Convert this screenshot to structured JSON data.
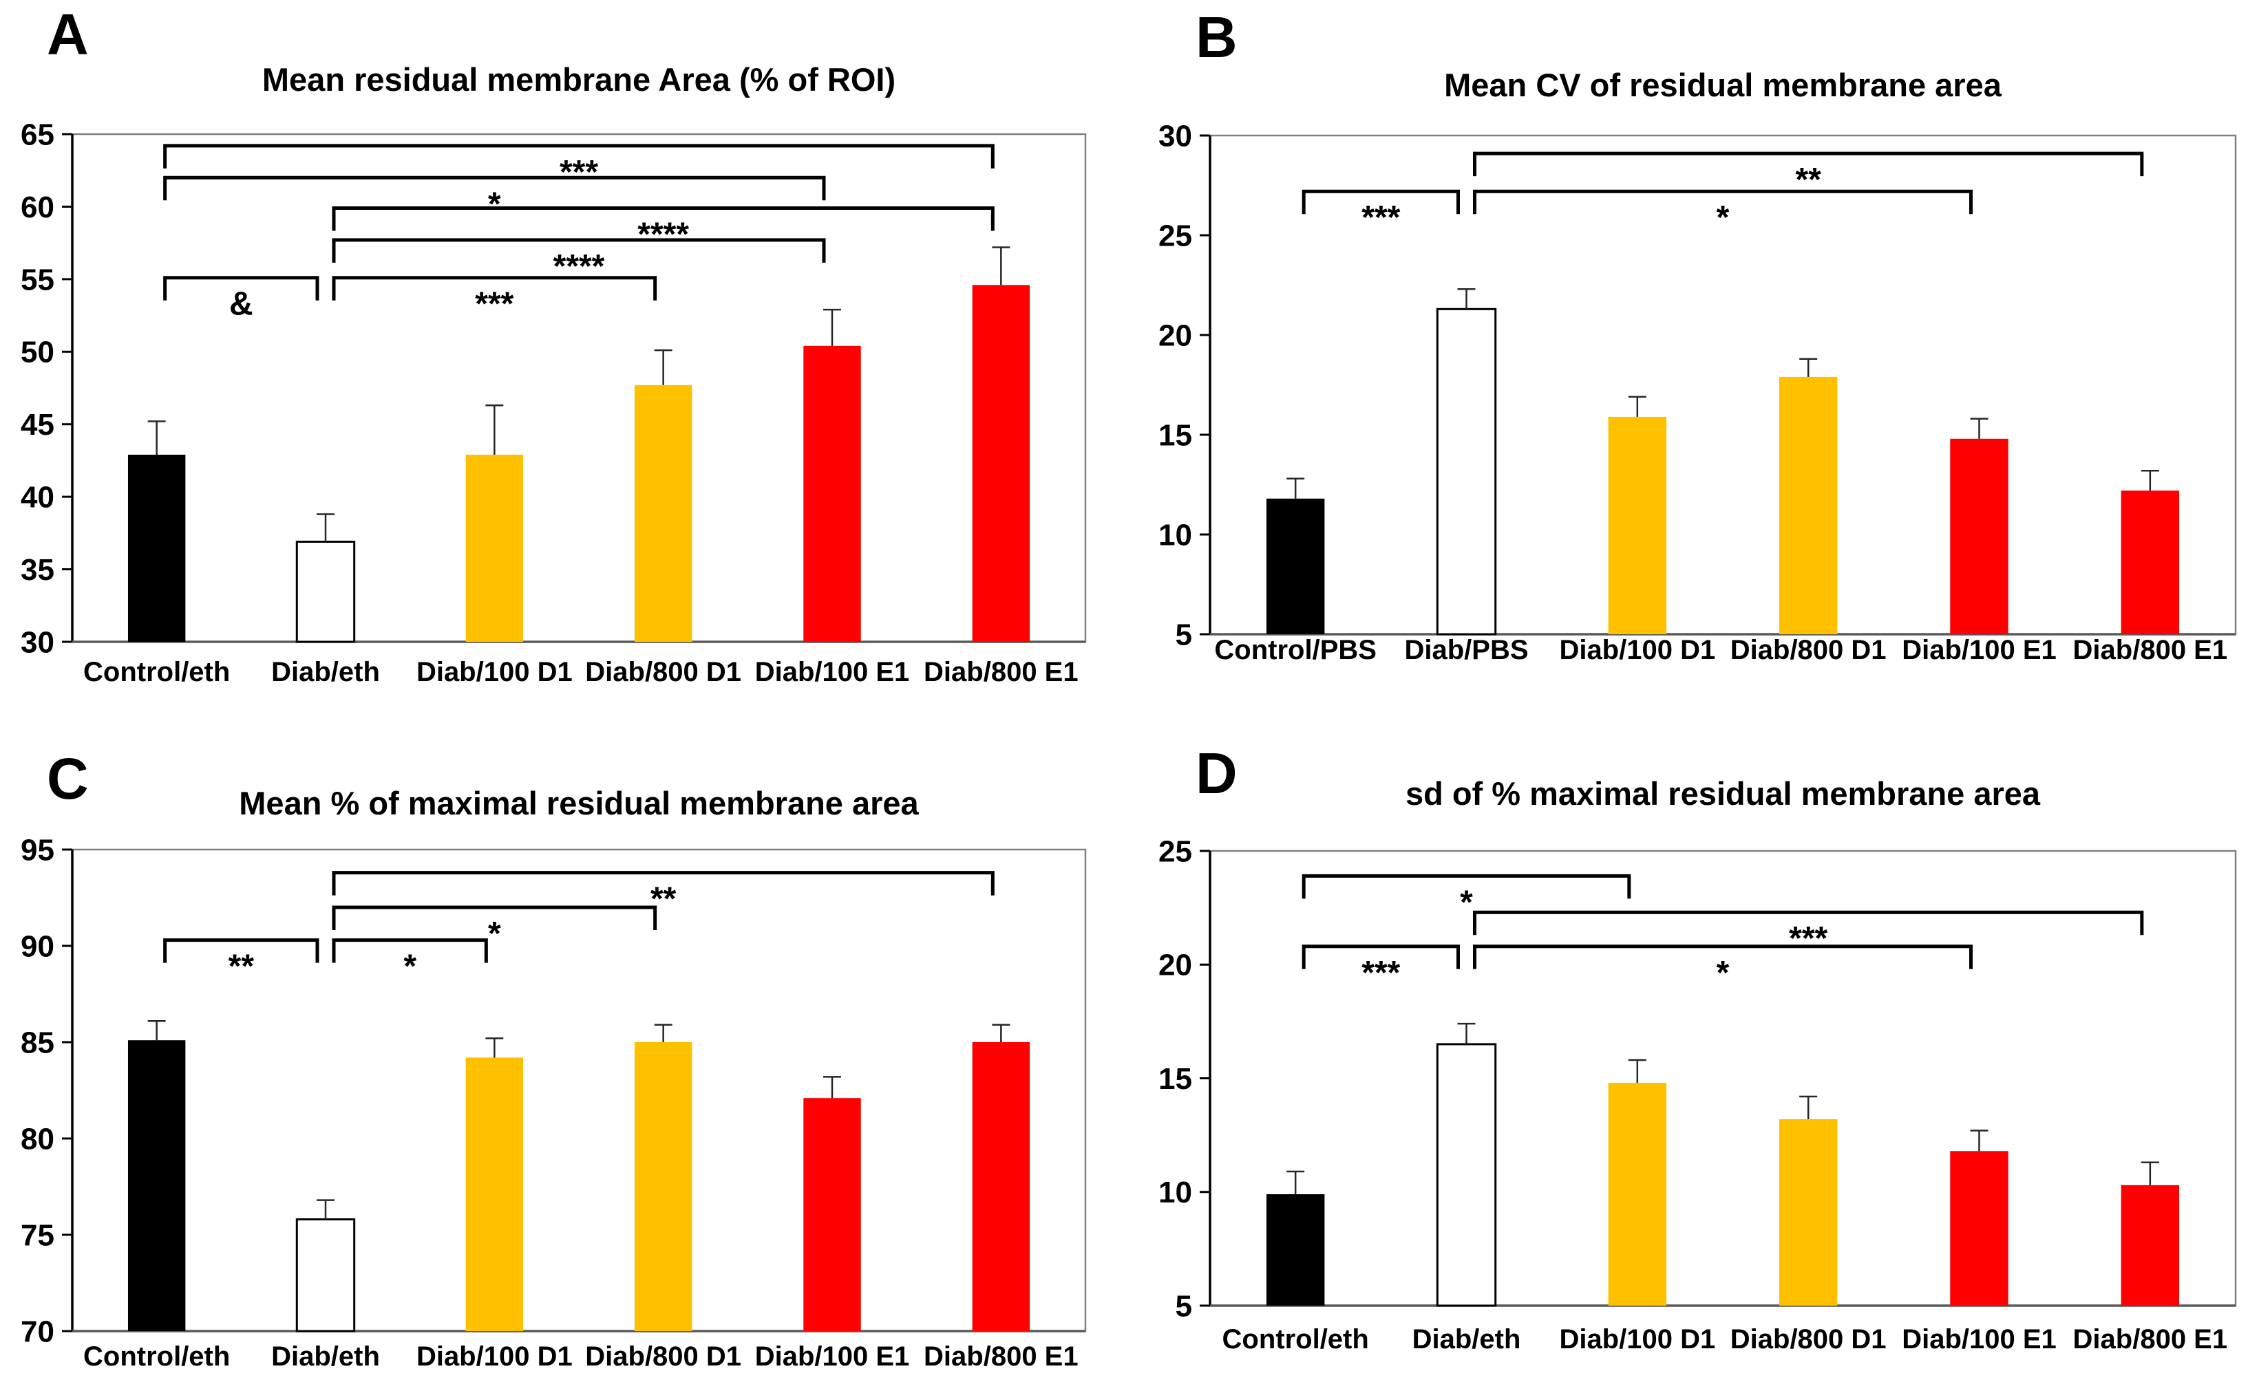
{
  "figure": {
    "background": "#ffffff"
  },
  "colors": {
    "black": "#000000",
    "white": "#FFFFFF",
    "yellow": "#FFC000",
    "red": "#FF0000"
  },
  "chart_data": [
    {
      "panel_label": "A",
      "type": "bar",
      "title": "Mean residual membrane Area (% of ROI)",
      "categories": [
        "Control/eth",
        "Diab/eth",
        "Diab/100 D1",
        "Diab/800 D1",
        "Diab/100 E1",
        "Diab/800 E1"
      ],
      "values": [
        42.9,
        36.9,
        42.9,
        47.7,
        50.4,
        54.6
      ],
      "errors_up": [
        2.3,
        1.9,
        3.4,
        2.4,
        2.5,
        2.6
      ],
      "bar_colors": [
        "#000000",
        "#FFFFFF",
        "#FFC000",
        "#FFC000",
        "#FF0000",
        "#FF0000"
      ],
      "ylim": [
        30,
        65
      ],
      "yticks": [
        30,
        35,
        40,
        45,
        50,
        55,
        60,
        65
      ],
      "xlabel": "",
      "ylabel": "",
      "grid": false,
      "legend": "none",
      "significance": [
        {
          "from": 0,
          "to": 5,
          "y": 64.2,
          "label": "***"
        },
        {
          "from": 0,
          "to": 4,
          "y": 62.0,
          "label": "*"
        },
        {
          "from": 1,
          "to": 5,
          "y": 59.9,
          "label": "****"
        },
        {
          "from": 1,
          "to": 4,
          "y": 57.7,
          "label": "****"
        },
        {
          "from": 0,
          "to": 1,
          "y": 55.1,
          "label": "&"
        },
        {
          "from": 1,
          "to": 3,
          "y": 55.1,
          "label": "***"
        }
      ]
    },
    {
      "panel_label": "B",
      "type": "bar",
      "title": "Mean CV of residual membrane area",
      "categories": [
        "Control/PBS",
        "Diab/PBS",
        "Diab/100 D1",
        "Diab/800 D1",
        "Diab/100 E1",
        "Diab/800 E1"
      ],
      "values": [
        11.8,
        21.3,
        15.9,
        17.9,
        14.8,
        12.2
      ],
      "errors_up": [
        1.0,
        1.0,
        1.0,
        0.9,
        1.0,
        1.0
      ],
      "bar_colors": [
        "#000000",
        "#FFFFFF",
        "#FFC000",
        "#FFC000",
        "#FF0000",
        "#FF0000"
      ],
      "ylim": [
        5,
        30
      ],
      "yticks": [
        5,
        10,
        15,
        20,
        25,
        30
      ],
      "xlabel": "",
      "ylabel": "",
      "grid": false,
      "legend": "none",
      "significance": [
        {
          "from": 1,
          "to": 5,
          "y": 29.1,
          "label": "**"
        },
        {
          "from": 0,
          "to": 1,
          "y": 27.2,
          "label": "***"
        },
        {
          "from": 1,
          "to": 4,
          "y": 27.2,
          "label": "*"
        }
      ]
    },
    {
      "panel_label": "C",
      "type": "bar",
      "title": "Mean % of maximal residual membrane area",
      "categories": [
        "Control/eth",
        "Diab/eth",
        "Diab/100 D1",
        "Diab/800 D1",
        "Diab/100 E1",
        "Diab/800 E1"
      ],
      "values": [
        85.1,
        75.8,
        84.2,
        85.0,
        82.1,
        85.0
      ],
      "errors_up": [
        1.0,
        1.0,
        1.0,
        0.9,
        1.1,
        0.9
      ],
      "bar_colors": [
        "#000000",
        "#FFFFFF",
        "#FFC000",
        "#FFC000",
        "#FF0000",
        "#FF0000"
      ],
      "ylim": [
        70,
        95
      ],
      "yticks": [
        70,
        75,
        80,
        85,
        90,
        95
      ],
      "xlabel": "",
      "ylabel": "",
      "grid": false,
      "legend": "none",
      "significance": [
        {
          "from": 1,
          "to": 5,
          "y": 93.8,
          "label": "**"
        },
        {
          "from": 1,
          "to": 3,
          "y": 92.0,
          "label": "*"
        },
        {
          "from": 0,
          "to": 1,
          "y": 90.3,
          "label": "**"
        },
        {
          "from": 1,
          "to": 2,
          "y": 90.3,
          "label": "*"
        }
      ]
    },
    {
      "panel_label": "D",
      "type": "bar",
      "title": "sd of % maximal residual membrane area",
      "categories": [
        "Control/eth",
        "Diab/eth",
        "Diab/100 D1",
        "Diab/800 D1",
        "Diab/100 E1",
        "Diab/800 E1"
      ],
      "values": [
        9.9,
        16.5,
        14.8,
        13.2,
        11.8,
        10.3
      ],
      "errors_up": [
        1.0,
        0.9,
        1.0,
        1.0,
        0.9,
        1.0
      ],
      "bar_colors": [
        "#000000",
        "#FFFFFF",
        "#FFC000",
        "#FFC000",
        "#FF0000",
        "#FF0000"
      ],
      "ylim": [
        5,
        25
      ],
      "yticks": [
        5,
        10,
        15,
        20,
        25
      ],
      "xlabel": "",
      "ylabel": "",
      "grid": false,
      "legend": "none",
      "significance": [
        {
          "from": 0,
          "to": 2,
          "y": 23.9,
          "label": "*"
        },
        {
          "from": 1,
          "to": 5,
          "y": 22.3,
          "label": "***"
        },
        {
          "from": 0,
          "to": 1,
          "y": 20.8,
          "label": "***"
        },
        {
          "from": 1,
          "to": 4,
          "y": 20.8,
          "label": "*"
        }
      ]
    }
  ]
}
